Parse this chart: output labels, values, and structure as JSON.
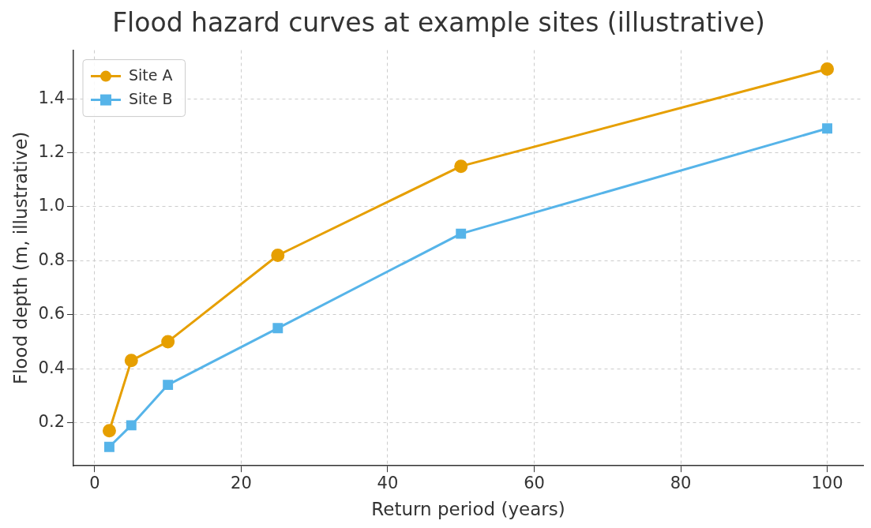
{
  "chart_data": {
    "type": "line",
    "title": "Flood hazard curves at example sites (illustrative)",
    "xlabel": "Return period (years)",
    "ylabel": "Flood depth (m, illustrative)",
    "x": [
      2,
      5,
      10,
      25,
      50,
      100
    ],
    "series": [
      {
        "name": "Site A",
        "color": "#e69f00",
        "marker": "circle",
        "values": [
          0.17,
          0.43,
          0.5,
          0.82,
          1.15,
          1.51
        ]
      },
      {
        "name": "Site B",
        "color": "#56b4e9",
        "marker": "square",
        "values": [
          0.11,
          0.19,
          0.34,
          0.55,
          0.9,
          1.29
        ]
      }
    ],
    "xlim": [
      -2.9,
      104.9
    ],
    "xticks": [
      0,
      20,
      40,
      60,
      80,
      100
    ],
    "ylim": [
      0.04,
      1.58
    ],
    "yticks": [
      0.2,
      0.4,
      0.6,
      0.8,
      {
        "value": 1,
        "label": "1.0"
      },
      1.2,
      1.4
    ],
    "grid": true,
    "legend": "top left",
    "line_style": "solid"
  }
}
